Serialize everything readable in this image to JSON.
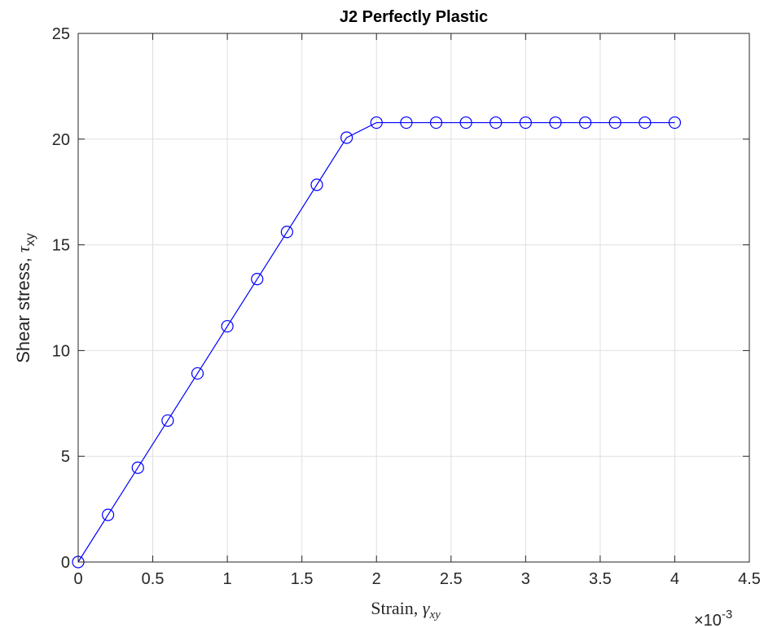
{
  "chart_data": {
    "type": "line",
    "title": "J2 Perfectly Plastic",
    "xlabel": {
      "prefix": "Strain, ",
      "symbol": "γ",
      "subscript": "xy"
    },
    "ylabel": {
      "prefix": "Shear stress, ",
      "symbol": "τ",
      "subscript": "xy"
    },
    "x_exponent": {
      "base": "×10",
      "power": "-3"
    },
    "xlim": [
      0,
      4.5
    ],
    "ylim": [
      0,
      25
    ],
    "x_ticks": [
      0,
      0.5,
      1,
      1.5,
      2,
      2.5,
      3,
      3.5,
      4,
      4.5
    ],
    "x_tick_labels": [
      "0",
      "0.5",
      "1",
      "1.5",
      "2",
      "2.5",
      "3",
      "3.5",
      "4",
      "4.5"
    ],
    "y_ticks": [
      0,
      5,
      10,
      15,
      20,
      25
    ],
    "y_tick_labels": [
      "0",
      "5",
      "10",
      "15",
      "20",
      "25"
    ],
    "grid": true,
    "series": [
      {
        "marker": "circle",
        "color": "#0000ff",
        "x": [
          0,
          0.2,
          0.4,
          0.6,
          0.8,
          1.0,
          1.2,
          1.4,
          1.6,
          1.8,
          2.0,
          2.2,
          2.4,
          2.6,
          2.8,
          3.0,
          3.2,
          3.4,
          3.6,
          3.8,
          4.0
        ],
        "y": [
          0,
          2.23,
          4.46,
          6.69,
          8.92,
          11.15,
          13.38,
          15.61,
          17.84,
          20.07,
          20.78,
          20.78,
          20.78,
          20.78,
          20.78,
          20.78,
          20.78,
          20.78,
          20.78,
          20.78,
          20.78
        ]
      }
    ]
  }
}
